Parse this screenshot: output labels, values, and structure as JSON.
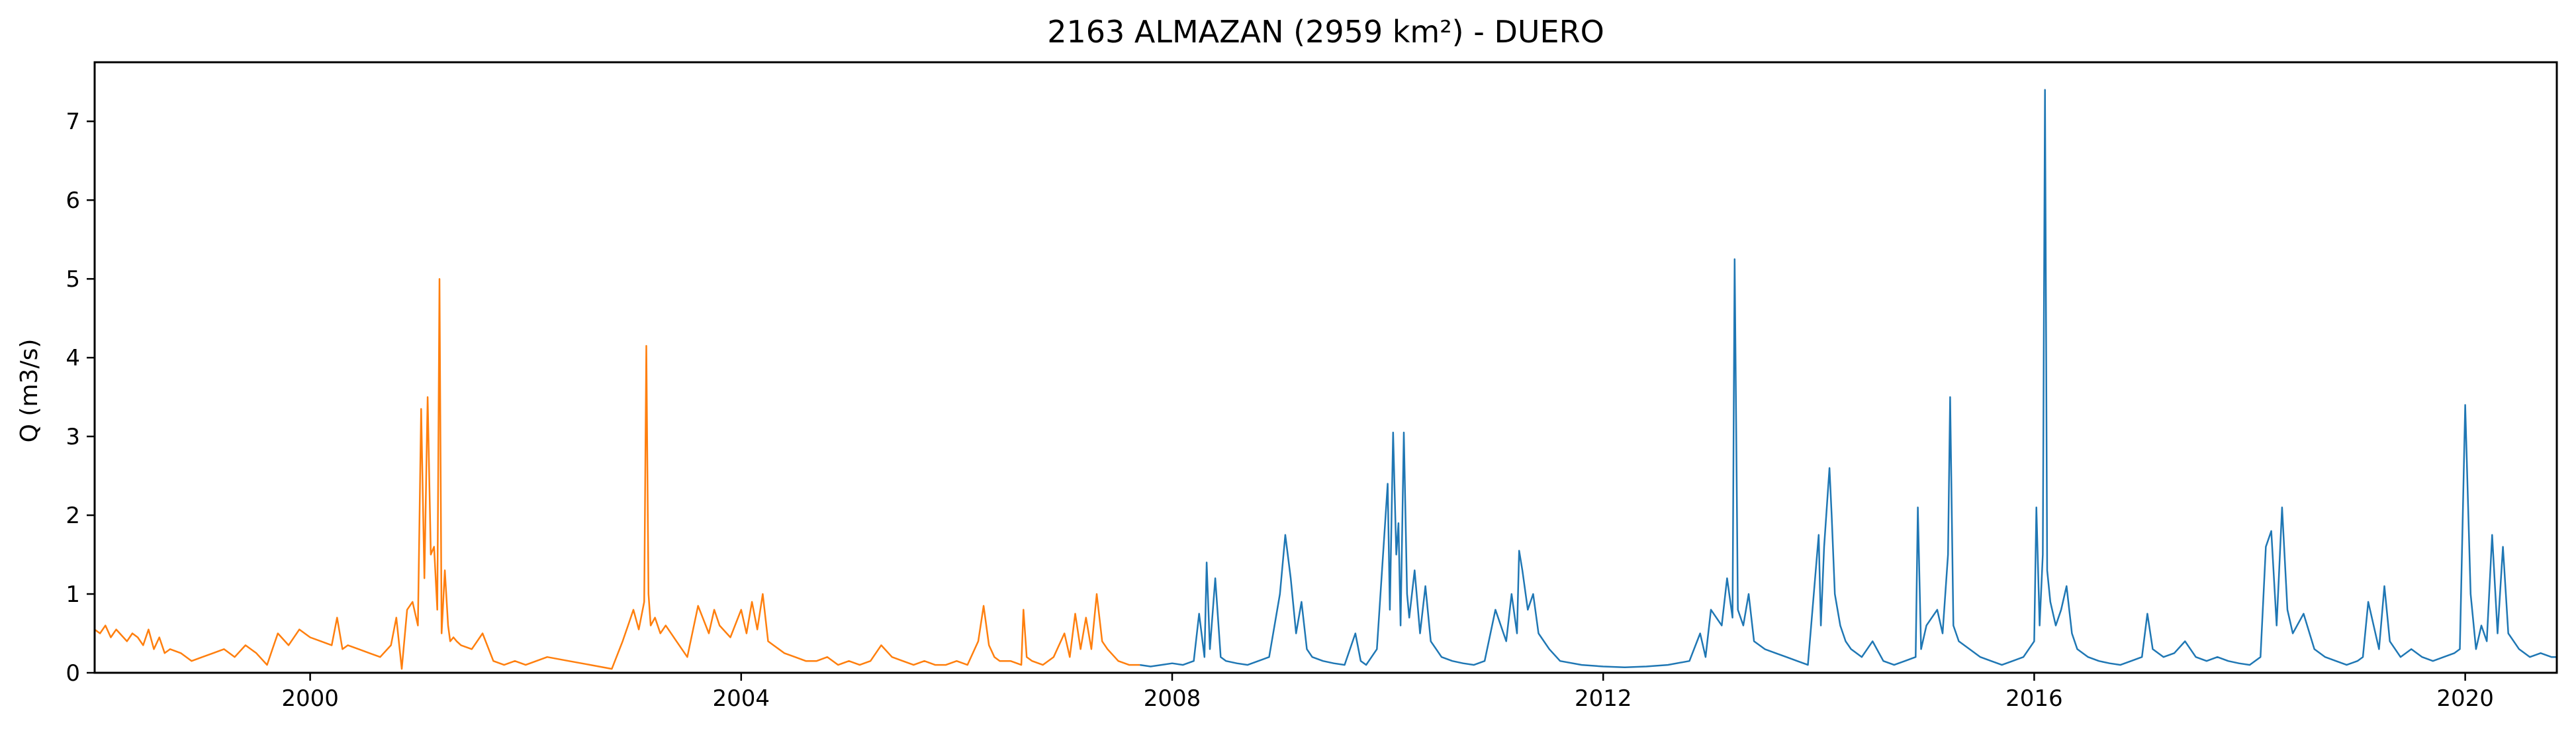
{
  "chart_data": {
    "type": "line",
    "title": "2163 ALMAZAN (2959 km²) - DUERO",
    "xlabel": "",
    "ylabel": "Q (m3/s)",
    "x_range": [
      1998.0,
      2020.85
    ],
    "ylim": [
      0,
      7.75
    ],
    "x_ticks": [
      {
        "value": 2000,
        "label": "2000"
      },
      {
        "value": 2004,
        "label": "2004"
      },
      {
        "value": 2008,
        "label": "2008"
      },
      {
        "value": 2012,
        "label": "2012"
      },
      {
        "value": 2016,
        "label": "2016"
      },
      {
        "value": 2020,
        "label": "2020"
      }
    ],
    "y_ticks": [
      {
        "value": 0,
        "label": "0"
      },
      {
        "value": 1,
        "label": "1"
      },
      {
        "value": 2,
        "label": "2"
      },
      {
        "value": 3,
        "label": "3"
      },
      {
        "value": 4,
        "label": "4"
      },
      {
        "value": 5,
        "label": "5"
      },
      {
        "value": 6,
        "label": "6"
      },
      {
        "value": 7,
        "label": "7"
      }
    ],
    "grid": false,
    "legend": "none",
    "series": [
      {
        "color": "#ff7f0e",
        "x": [
          1998.0,
          1998.05,
          1998.1,
          1998.15,
          1998.2,
          1998.3,
          1998.35,
          1998.4,
          1998.45,
          1998.5,
          1998.55,
          1998.6,
          1998.65,
          1998.7,
          1998.8,
          1998.9,
          1999.0,
          1999.1,
          1999.2,
          1999.3,
          1999.4,
          1999.5,
          1999.6,
          1999.65,
          1999.7,
          1999.8,
          1999.9,
          2000.0,
          2000.1,
          2000.2,
          2000.25,
          2000.3,
          2000.35,
          2000.45,
          2000.55,
          2000.65,
          2000.75,
          2000.8,
          2000.85,
          2000.9,
          2000.95,
          2001.0,
          2001.03,
          2001.06,
          2001.09,
          2001.12,
          2001.15,
          2001.18,
          2001.2,
          2001.22,
          2001.25,
          2001.28,
          2001.3,
          2001.33,
          2001.36,
          2001.4,
          2001.5,
          2001.6,
          2001.7,
          2001.8,
          2001.9,
          2002.0,
          2002.2,
          2002.4,
          2002.6,
          2002.8,
          2002.9,
          2002.95,
          2003.0,
          2003.05,
          2003.1,
          2003.12,
          2003.14,
          2003.16,
          2003.2,
          2003.25,
          2003.3,
          2003.4,
          2003.5,
          2003.6,
          2003.7,
          2003.75,
          2003.8,
          2003.9,
          2004.0,
          2004.05,
          2004.1,
          2004.15,
          2004.2,
          2004.25,
          2004.3,
          2004.35,
          2004.4,
          2004.5,
          2004.6,
          2004.7,
          2004.8,
          2004.9,
          2005.0,
          2005.1,
          2005.2,
          2005.3,
          2005.4,
          2005.5,
          2005.6,
          2005.7,
          2005.8,
          2005.9,
          2006.0,
          2006.1,
          2006.2,
          2006.25,
          2006.3,
          2006.35,
          2006.4,
          2006.5,
          2006.6,
          2006.62,
          2006.65,
          2006.7,
          2006.8,
          2006.9,
          2007.0,
          2007.05,
          2007.1,
          2007.15,
          2007.2,
          2007.25,
          2007.3,
          2007.35,
          2007.4,
          2007.5,
          2007.6,
          2007.7
        ],
        "y": [
          0.55,
          0.5,
          0.6,
          0.45,
          0.55,
          0.4,
          0.5,
          0.45,
          0.35,
          0.55,
          0.3,
          0.45,
          0.25,
          0.3,
          0.25,
          0.15,
          0.2,
          0.25,
          0.3,
          0.2,
          0.35,
          0.25,
          0.1,
          0.3,
          0.5,
          0.35,
          0.55,
          0.45,
          0.4,
          0.35,
          0.7,
          0.3,
          0.35,
          0.3,
          0.25,
          0.2,
          0.35,
          0.7,
          0.05,
          0.8,
          0.9,
          0.6,
          3.35,
          1.2,
          3.5,
          1.5,
          1.6,
          0.8,
          5.0,
          0.5,
          1.3,
          0.6,
          0.4,
          0.45,
          0.4,
          0.35,
          0.3,
          0.5,
          0.15,
          0.1,
          0.15,
          0.1,
          0.2,
          0.15,
          0.1,
          0.05,
          0.4,
          0.6,
          0.8,
          0.55,
          0.9,
          4.15,
          1.0,
          0.6,
          0.7,
          0.5,
          0.6,
          0.4,
          0.2,
          0.85,
          0.5,
          0.8,
          0.6,
          0.45,
          0.8,
          0.5,
          0.9,
          0.55,
          1.0,
          0.4,
          0.35,
          0.3,
          0.25,
          0.2,
          0.15,
          0.15,
          0.2,
          0.1,
          0.15,
          0.1,
          0.15,
          0.35,
          0.2,
          0.15,
          0.1,
          0.15,
          0.1,
          0.1,
          0.15,
          0.1,
          0.4,
          0.85,
          0.35,
          0.2,
          0.15,
          0.15,
          0.1,
          0.8,
          0.2,
          0.15,
          0.1,
          0.2,
          0.5,
          0.2,
          0.75,
          0.3,
          0.7,
          0.3,
          1.0,
          0.4,
          0.3,
          0.15,
          0.1,
          0.1
        ]
      },
      {
        "color": "#1f77b4",
        "x": [
          2007.7,
          2007.8,
          2007.9,
          2008.0,
          2008.1,
          2008.2,
          2008.25,
          2008.3,
          2008.32,
          2008.35,
          2008.4,
          2008.45,
          2008.5,
          2008.6,
          2008.7,
          2008.8,
          2008.9,
          2009.0,
          2009.05,
          2009.1,
          2009.15,
          2009.2,
          2009.25,
          2009.3,
          2009.4,
          2009.5,
          2009.6,
          2009.7,
          2009.75,
          2009.8,
          2009.9,
          2010.0,
          2010.02,
          2010.05,
          2010.08,
          2010.1,
          2010.12,
          2010.15,
          2010.18,
          2010.2,
          2010.25,
          2010.3,
          2010.35,
          2010.4,
          2010.45,
          2010.5,
          2010.6,
          2010.7,
          2010.8,
          2010.9,
          2011.0,
          2011.1,
          2011.15,
          2011.2,
          2011.22,
          2011.25,
          2011.3,
          2011.35,
          2011.4,
          2011.5,
          2011.6,
          2011.8,
          2012.0,
          2012.2,
          2012.4,
          2012.6,
          2012.8,
          2012.9,
          2012.95,
          2013.0,
          2013.1,
          2013.15,
          2013.2,
          2013.22,
          2013.25,
          2013.3,
          2013.35,
          2013.4,
          2013.5,
          2013.6,
          2013.7,
          2013.8,
          2013.9,
          2014.0,
          2014.02,
          2014.05,
          2014.1,
          2014.12,
          2014.15,
          2014.2,
          2014.25,
          2014.3,
          2014.4,
          2014.5,
          2014.6,
          2014.7,
          2014.8,
          2014.9,
          2014.92,
          2014.95,
          2015.0,
          2015.1,
          2015.15,
          2015.2,
          2015.22,
          2015.25,
          2015.3,
          2015.4,
          2015.5,
          2015.6,
          2015.7,
          2015.8,
          2015.9,
          2016.0,
          2016.02,
          2016.05,
          2016.08,
          2016.1,
          2016.12,
          2016.15,
          2016.2,
          2016.25,
          2016.3,
          2016.35,
          2016.4,
          2016.5,
          2016.6,
          2016.7,
          2016.8,
          2016.9,
          2017.0,
          2017.05,
          2017.1,
          2017.2,
          2017.3,
          2017.4,
          2017.5,
          2017.6,
          2017.7,
          2017.8,
          2017.9,
          2018.0,
          2018.1,
          2018.15,
          2018.2,
          2018.25,
          2018.3,
          2018.35,
          2018.4,
          2018.5,
          2018.6,
          2018.7,
          2018.8,
          2018.9,
          2019.0,
          2019.05,
          2019.1,
          2019.2,
          2019.25,
          2019.3,
          2019.4,
          2019.5,
          2019.6,
          2019.7,
          2019.8,
          2019.9,
          2019.95,
          2020.0,
          2020.05,
          2020.1,
          2020.15,
          2020.2,
          2020.25,
          2020.3,
          2020.35,
          2020.4,
          2020.45,
          2020.5,
          2020.6,
          2020.7,
          2020.8,
          2020.85
        ],
        "y": [
          0.1,
          0.08,
          0.1,
          0.12,
          0.1,
          0.15,
          0.75,
          0.2,
          1.4,
          0.3,
          1.2,
          0.2,
          0.15,
          0.12,
          0.1,
          0.15,
          0.2,
          1.0,
          1.75,
          1.2,
          0.5,
          0.9,
          0.3,
          0.2,
          0.15,
          0.12,
          0.1,
          0.5,
          0.15,
          0.1,
          0.3,
          2.4,
          0.8,
          3.05,
          1.5,
          1.9,
          0.6,
          3.05,
          1.0,
          0.7,
          1.3,
          0.5,
          1.1,
          0.4,
          0.3,
          0.2,
          0.15,
          0.12,
          0.1,
          0.15,
          0.8,
          0.4,
          1.0,
          0.5,
          1.55,
          1.3,
          0.8,
          1.0,
          0.5,
          0.3,
          0.15,
          0.1,
          0.08,
          0.07,
          0.08,
          0.1,
          0.15,
          0.5,
          0.2,
          0.8,
          0.6,
          1.2,
          0.7,
          5.25,
          0.8,
          0.6,
          1.0,
          0.4,
          0.3,
          0.25,
          0.2,
          0.15,
          0.1,
          1.75,
          0.6,
          1.6,
          2.6,
          2.0,
          1.0,
          0.6,
          0.4,
          0.3,
          0.2,
          0.4,
          0.15,
          0.1,
          0.15,
          0.2,
          2.1,
          0.3,
          0.6,
          0.8,
          0.5,
          1.5,
          3.5,
          0.6,
          0.4,
          0.3,
          0.2,
          0.15,
          0.1,
          0.15,
          0.2,
          0.4,
          2.1,
          0.6,
          1.5,
          7.4,
          1.3,
          0.9,
          0.6,
          0.8,
          1.1,
          0.5,
          0.3,
          0.2,
          0.15,
          0.12,
          0.1,
          0.15,
          0.2,
          0.75,
          0.3,
          0.2,
          0.25,
          0.4,
          0.2,
          0.15,
          0.2,
          0.15,
          0.12,
          0.1,
          0.2,
          1.6,
          1.8,
          0.6,
          2.1,
          0.8,
          0.5,
          0.75,
          0.3,
          0.2,
          0.15,
          0.1,
          0.15,
          0.2,
          0.9,
          0.3,
          1.1,
          0.4,
          0.2,
          0.3,
          0.2,
          0.15,
          0.2,
          0.25,
          0.3,
          3.4,
          1.0,
          0.3,
          0.6,
          0.4,
          1.75,
          0.5,
          1.6,
          0.5,
          0.4,
          0.3,
          0.2,
          0.25,
          0.2,
          0.2
        ]
      }
    ]
  }
}
